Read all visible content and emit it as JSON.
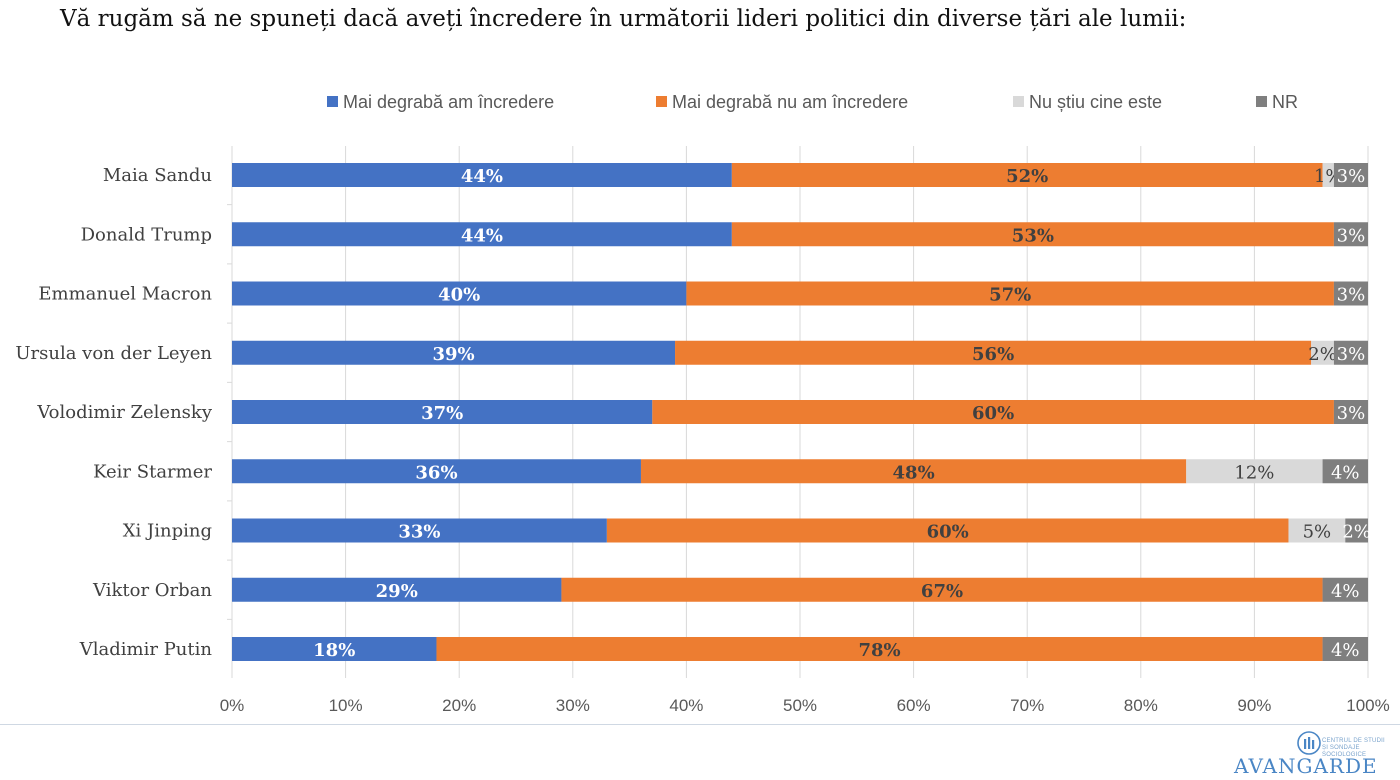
{
  "title": "Vă rugăm să ne spuneți dacă aveți încredere în următorii lideri politici din diverse țări ale lumii:",
  "logo": {
    "name": "AVANGARDE",
    "subtitle": "CENTRUL DE STUDII ȘI SONDAJE SOCIOLOGICE"
  },
  "chart_data": {
    "type": "bar",
    "orientation": "horizontal",
    "stacked": true,
    "normalized": true,
    "categories": [
      "Maia Sandu",
      "Donald Trump",
      "Emmanuel Macron",
      "Ursula von der Leyen",
      "Volodimir Zelensky",
      "Keir Starmer",
      "Xi Jinping",
      "Viktor Orban",
      "Vladimir Putin"
    ],
    "series": [
      {
        "name": "Mai degrabă am încredere",
        "color": "#4472c4",
        "label_color": "#ffffff",
        "values": [
          44,
          44,
          40,
          39,
          37,
          36,
          33,
          29,
          18
        ]
      },
      {
        "name": "Mai degrabă nu am încredere",
        "color": "#ed7d31",
        "label_color": "#404040",
        "values": [
          52,
          53,
          57,
          56,
          60,
          48,
          60,
          67,
          78
        ]
      },
      {
        "name": "Nu știu cine este",
        "color": "#d9d9d9",
        "label_color": "#404040",
        "values": [
          1,
          0,
          0,
          2,
          0,
          12,
          5,
          0,
          0
        ]
      },
      {
        "name": "NR",
        "color": "#7f7f7f",
        "label_color": "#ffffff",
        "values": [
          3,
          3,
          3,
          3,
          3,
          4,
          2,
          4,
          4
        ]
      }
    ],
    "xticks": [
      "0%",
      "10%",
      "20%",
      "30%",
      "40%",
      "50%",
      "60%",
      "70%",
      "80%",
      "90%",
      "100%"
    ],
    "xlim": [
      0,
      100
    ],
    "grid": true,
    "legend": "top"
  }
}
